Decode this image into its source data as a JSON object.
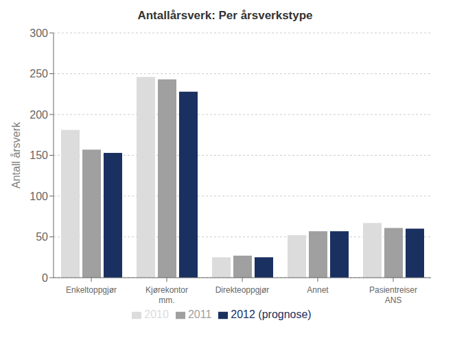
{
  "chart_data": {
    "type": "bar",
    "title": "Antallårsverk: Per årsverkstype",
    "ylabel": "Antall årsverk",
    "categories": [
      "Enkeltoppgjør",
      "Kjørekontor\nmm.",
      "Direkteoppgjør",
      "Annet",
      "Pasientreiser\nANS"
    ],
    "series": [
      {
        "name": "2010",
        "color": "#dcdcdc",
        "values": [
          181,
          246,
          25,
          52,
          67
        ]
      },
      {
        "name": "2011",
        "color": "#a0a0a0",
        "values": [
          157,
          243,
          27,
          57,
          61
        ]
      },
      {
        "name": "2012 (prognose)",
        "color": "#1a3060",
        "values": [
          153,
          228,
          25,
          57,
          60
        ]
      }
    ],
    "ylim": [
      0,
      300
    ],
    "yticks": [
      0,
      50,
      100,
      150,
      200,
      250,
      300
    ],
    "grid": true,
    "legend": "bottom"
  }
}
